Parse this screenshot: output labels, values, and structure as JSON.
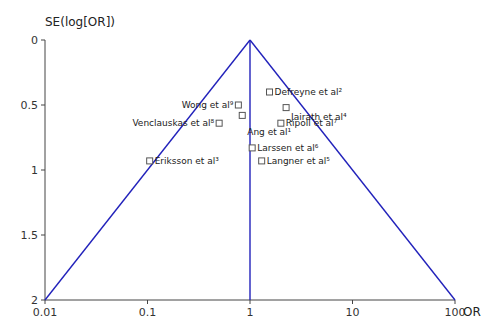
{
  "chart_data": {
    "type": "scatter",
    "xlabel": "OR",
    "ylabel": "SE(log[OR])",
    "log": "x",
    "xlim": [
      0.01,
      100
    ],
    "ylim": [
      2.0,
      0.0
    ],
    "xticks": [
      0.01,
      0.1,
      1,
      10,
      100
    ],
    "yticks": [
      0,
      0.5,
      1,
      1.5,
      2
    ],
    "grid": false,
    "series": [
      {
        "type": "line",
        "color": "#2222bb",
        "x": [
          1.0,
          0.01
        ],
        "values": [
          0.0,
          2.0
        ]
      },
      {
        "type": "line",
        "color": "#2222bb",
        "x": [
          1.0,
          100.0
        ],
        "values": [
          0.0,
          2.0
        ]
      },
      {
        "type": "line",
        "color": "#2222bb",
        "x": [
          1.0,
          1.0
        ],
        "values": [
          0.0,
          2.0
        ]
      },
      {
        "type": "scatter",
        "marker": "square",
        "x": [
          1.55,
          0.77,
          2.25,
          0.84,
          0.5,
          2.0,
          1.05,
          1.3,
          0.105
        ],
        "values": [
          0.4,
          0.5,
          0.52,
          0.58,
          0.64,
          0.64,
          0.83,
          0.93,
          0.93
        ],
        "labels": [
          "Defreyne et al²",
          "Wong et al⁹",
          "Jairath et al⁴",
          "Ang et al¹",
          "Venclauskas et al⁸",
          "Ripoll et al⁷",
          "Larssen et al⁶",
          "Langner et al⁵",
          "Eriksson et al³"
        ]
      }
    ]
  }
}
